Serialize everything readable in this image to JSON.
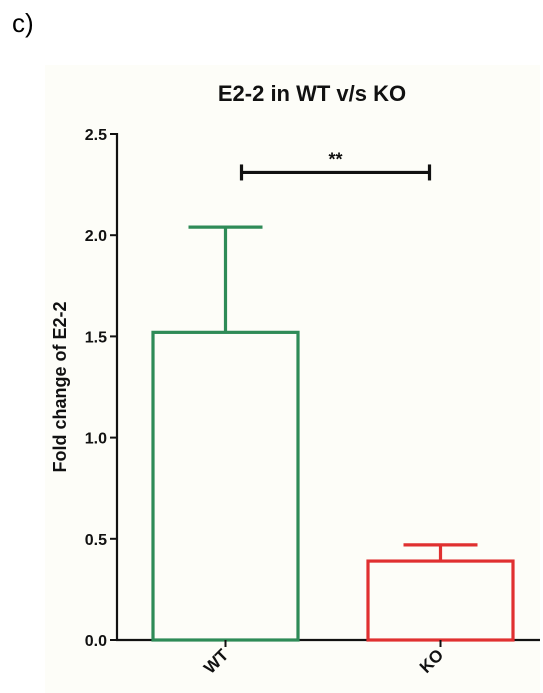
{
  "panel_label": "c)",
  "chart_data": {
    "type": "bar",
    "title": "E2-2 in WT v/s KO",
    "xlabel": "",
    "ylabel": "Fold change of E2-2",
    "ylim": [
      0,
      2.5
    ],
    "yticks": [
      "0.0",
      "0.5",
      "1.0",
      "1.5",
      "2.0",
      "2.5"
    ],
    "categories": [
      "WT",
      "KO"
    ],
    "values": [
      1.52,
      0.39
    ],
    "error_upper": [
      2.04,
      0.47
    ],
    "colors": [
      "#2e8b57",
      "#e03030"
    ],
    "bar_fill": "none",
    "significance": {
      "between": [
        "WT",
        "KO"
      ],
      "label": "**",
      "y": 2.31
    },
    "grid": false
  }
}
